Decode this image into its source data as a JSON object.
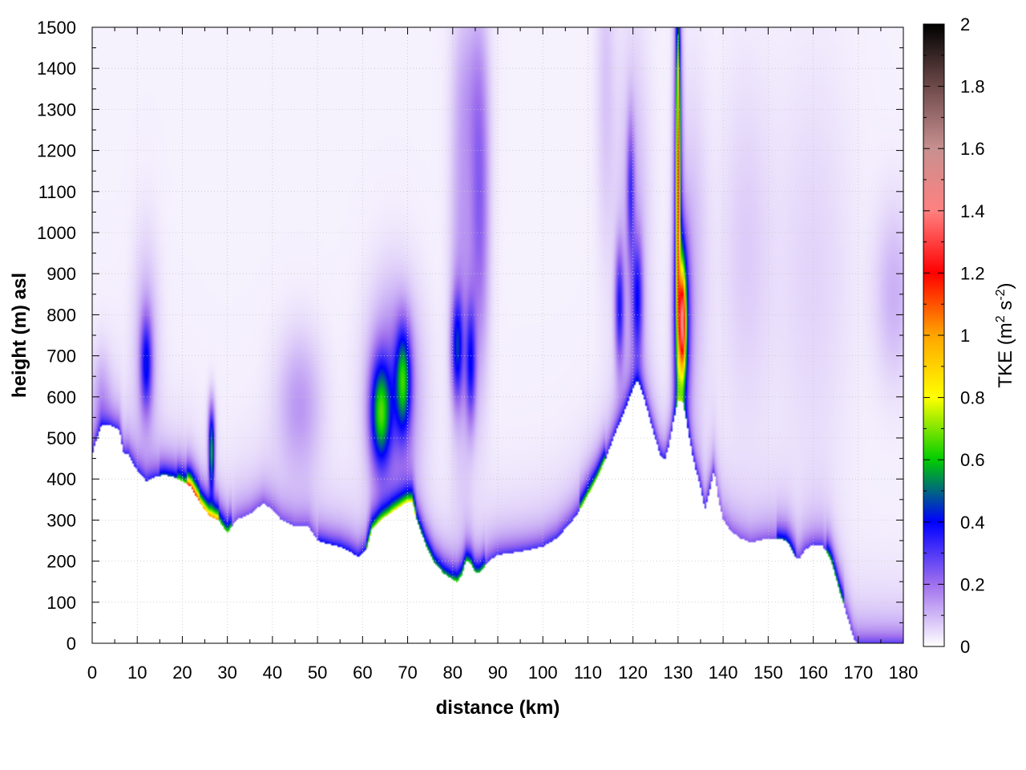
{
  "chart_data": {
    "type": "heatmap",
    "title": "",
    "xlabel": "distance (km)",
    "ylabel": "height (m) asl",
    "xlim": [
      0,
      180
    ],
    "ylim": [
      0,
      1500
    ],
    "x_ticks": [
      "0",
      "10",
      "20",
      "30",
      "40",
      "50",
      "60",
      "70",
      "80",
      "90",
      "100",
      "110",
      "120",
      "130",
      "140",
      "150",
      "160",
      "170",
      "180"
    ],
    "y_ticks": [
      "0",
      "100",
      "200",
      "300",
      "400",
      "500",
      "600",
      "700",
      "800",
      "900",
      "1000",
      "1100",
      "1200",
      "1300",
      "1400",
      "1500"
    ],
    "grid": true,
    "colorbar": {
      "label_main": "TKE (m",
      "label_sup1": "2",
      "label_mid": " s",
      "label_sup2": "-2",
      "label_end": ")",
      "range": [
        0,
        2
      ],
      "ticks": [
        "0",
        "0.2",
        "0.4",
        "0.6",
        "0.8",
        "1",
        "1.2",
        "1.4",
        "1.6",
        "1.8",
        "2"
      ],
      "colors": [
        {
          "v": 0.0,
          "c": "#ffffff"
        },
        {
          "v": 0.2,
          "c": "#a070ee"
        },
        {
          "v": 0.4,
          "c": "#0000ff"
        },
        {
          "v": 0.6,
          "c": "#00cc00"
        },
        {
          "v": 0.8,
          "c": "#ffff00"
        },
        {
          "v": 1.0,
          "c": "#ffa500"
        },
        {
          "v": 1.2,
          "c": "#ff0000"
        },
        {
          "v": 1.4,
          "c": "#ff8080"
        },
        {
          "v": 1.6,
          "c": "#c89090"
        },
        {
          "v": 1.8,
          "c": "#6e4a4a"
        },
        {
          "v": 2.0,
          "c": "#000000"
        }
      ]
    },
    "terrain": [
      [
        0,
        460
      ],
      [
        2,
        530
      ],
      [
        4,
        530
      ],
      [
        6,
        520
      ],
      [
        7,
        460
      ],
      [
        8,
        460
      ],
      [
        10,
        420
      ],
      [
        12,
        395
      ],
      [
        14,
        405
      ],
      [
        16,
        410
      ],
      [
        18,
        405
      ],
      [
        20,
        395
      ],
      [
        22,
        380
      ],
      [
        24,
        340
      ],
      [
        26,
        310
      ],
      [
        28,
        300
      ],
      [
        30,
        268
      ],
      [
        32,
        300
      ],
      [
        35,
        315
      ],
      [
        38,
        340
      ],
      [
        40,
        325
      ],
      [
        42,
        300
      ],
      [
        45,
        285
      ],
      [
        48,
        285
      ],
      [
        50,
        250
      ],
      [
        53,
        240
      ],
      [
        55,
        235
      ],
      [
        57,
        225
      ],
      [
        59,
        210
      ],
      [
        61,
        230
      ],
      [
        62,
        275
      ],
      [
        64,
        300
      ],
      [
        66,
        315
      ],
      [
        68,
        330
      ],
      [
        70,
        345
      ],
      [
        71,
        345
      ],
      [
        72,
        300
      ],
      [
        74,
        240
      ],
      [
        76,
        195
      ],
      [
        78,
        170
      ],
      [
        80,
        155
      ],
      [
        81,
        150
      ],
      [
        82,
        165
      ],
      [
        83,
        200
      ],
      [
        84,
        195
      ],
      [
        85,
        170
      ],
      [
        86,
        170
      ],
      [
        88,
        200
      ],
      [
        90,
        215
      ],
      [
        93,
        220
      ],
      [
        96,
        225
      ],
      [
        100,
        235
      ],
      [
        103,
        255
      ],
      [
        106,
        290
      ],
      [
        108,
        320
      ],
      [
        110,
        360
      ],
      [
        112,
        400
      ],
      [
        114,
        450
      ],
      [
        116,
        510
      ],
      [
        118,
        560
      ],
      [
        120,
        620
      ],
      [
        121,
        640
      ],
      [
        122,
        615
      ],
      [
        124,
        535
      ],
      [
        126,
        460
      ],
      [
        127,
        445
      ],
      [
        128,
        480
      ],
      [
        129,
        540
      ],
      [
        130,
        590
      ],
      [
        131,
        590
      ],
      [
        132,
        535
      ],
      [
        133,
        470
      ],
      [
        134,
        420
      ],
      [
        135,
        380
      ],
      [
        136,
        325
      ],
      [
        137,
        370
      ],
      [
        138,
        420
      ],
      [
        139,
        350
      ],
      [
        140,
        300
      ],
      [
        142,
        270
      ],
      [
        144,
        255
      ],
      [
        146,
        245
      ],
      [
        148,
        250
      ],
      [
        150,
        255
      ],
      [
        152,
        255
      ],
      [
        154,
        250
      ],
      [
        155,
        235
      ],
      [
        156,
        210
      ],
      [
        157,
        205
      ],
      [
        158,
        225
      ],
      [
        160,
        240
      ],
      [
        162,
        240
      ],
      [
        164,
        200
      ],
      [
        166,
        120
      ],
      [
        168,
        50
      ],
      [
        169,
        10
      ],
      [
        170,
        0
      ],
      [
        180,
        0
      ]
    ],
    "blobs": [
      {
        "x": 12,
        "y": 680,
        "sx": 0.9,
        "sy": 80,
        "v": 0.3
      },
      {
        "x": 12,
        "y": 720,
        "sx": 2.0,
        "sy": 180,
        "v": 0.1
      },
      {
        "x": 26.5,
        "y": 450,
        "sx": 0.4,
        "sy": 60,
        "v": 0.45
      },
      {
        "x": 26.5,
        "y": 520,
        "sx": 0.6,
        "sy": 60,
        "v": 0.2
      },
      {
        "x": 46,
        "y": 580,
        "sx": 3.5,
        "sy": 120,
        "v": 0.12
      },
      {
        "x": 64,
        "y": 560,
        "sx": 1.6,
        "sy": 90,
        "v": 0.5
      },
      {
        "x": 69,
        "y": 640,
        "sx": 1.2,
        "sy": 90,
        "v": 0.45
      },
      {
        "x": 67,
        "y": 620,
        "sx": 4.0,
        "sy": 170,
        "v": 0.2
      },
      {
        "x": 81,
        "y": 720,
        "sx": 0.9,
        "sy": 90,
        "v": 0.35
      },
      {
        "x": 84,
        "y": 680,
        "sx": 0.8,
        "sy": 100,
        "v": 0.3
      },
      {
        "x": 82,
        "y": 900,
        "sx": 1.8,
        "sy": 350,
        "v": 0.12
      },
      {
        "x": 86,
        "y": 1050,
        "sx": 1.5,
        "sy": 280,
        "v": 0.2
      },
      {
        "x": 84,
        "y": 1350,
        "sx": 2.5,
        "sy": 150,
        "v": 0.07
      },
      {
        "x": 119.5,
        "y": 1100,
        "sx": 0.6,
        "sy": 120,
        "v": 0.22
      },
      {
        "x": 117,
        "y": 820,
        "sx": 0.7,
        "sy": 100,
        "v": 0.3
      },
      {
        "x": 121,
        "y": 840,
        "sx": 0.8,
        "sy": 100,
        "v": 0.28
      },
      {
        "x": 120,
        "y": 950,
        "sx": 2.5,
        "sy": 350,
        "v": 0.1
      },
      {
        "x": 114,
        "y": 1350,
        "sx": 1.5,
        "sy": 300,
        "v": 0.06
      },
      {
        "x": 131,
        "y": 780,
        "sx": 0.55,
        "sy": 95,
        "v": 0.9
      },
      {
        "x": 131,
        "y": 780,
        "sx": 1.2,
        "sy": 150,
        "v": 0.4
      },
      {
        "x": 130,
        "y": 1150,
        "sx": 0.3,
        "sy": 280,
        "v": 0.8
      },
      {
        "x": 130,
        "y": 1100,
        "sx": 0.7,
        "sy": 380,
        "v": 0.3
      },
      {
        "x": 133,
        "y": 900,
        "sx": 2.5,
        "sy": 300,
        "v": 0.08
      },
      {
        "x": 145,
        "y": 950,
        "sx": 4,
        "sy": 300,
        "v": 0.05
      },
      {
        "x": 160,
        "y": 900,
        "sx": 6,
        "sy": 350,
        "v": 0.04
      },
      {
        "x": 178,
        "y": 850,
        "sx": 3,
        "sy": 150,
        "v": 0.09
      },
      {
        "x": 2,
        "y": 600,
        "sx": 1.5,
        "sy": 80,
        "v": 0.08
      }
    ],
    "surface_layer": [
      {
        "x0": 0,
        "x1": 15,
        "v": 0.2
      },
      {
        "x0": 15,
        "x1": 19,
        "v": 0.35
      },
      {
        "x0": 19,
        "x1": 21,
        "v": 0.55
      },
      {
        "x0": 21,
        "x1": 24,
        "v": 1.1
      },
      {
        "x0": 24,
        "x1": 28,
        "v": 0.9
      },
      {
        "x0": 28,
        "x1": 31,
        "v": 0.55
      },
      {
        "x0": 31,
        "x1": 50,
        "v": 0.12
      },
      {
        "x0": 50,
        "x1": 61,
        "v": 0.25
      },
      {
        "x0": 61,
        "x1": 66,
        "v": 0.6
      },
      {
        "x0": 66,
        "x1": 72,
        "v": 0.65
      },
      {
        "x0": 72,
        "x1": 80,
        "v": 0.45
      },
      {
        "x0": 80,
        "x1": 87,
        "v": 0.5
      },
      {
        "x0": 87,
        "x1": 100,
        "v": 0.18
      },
      {
        "x0": 100,
        "x1": 108,
        "v": 0.2
      },
      {
        "x0": 108,
        "x1": 114,
        "v": 0.6
      },
      {
        "x0": 114,
        "x1": 128,
        "v": 0.22
      },
      {
        "x0": 128,
        "x1": 138,
        "v": 0.2
      },
      {
        "x0": 138,
        "x1": 152,
        "v": 0.1
      },
      {
        "x0": 152,
        "x1": 156,
        "v": 0.35
      },
      {
        "x0": 156,
        "x1": 163,
        "v": 0.15
      },
      {
        "x0": 163,
        "x1": 167,
        "v": 0.5
      },
      {
        "x0": 167,
        "x1": 180,
        "v": 0.15
      }
    ]
  }
}
